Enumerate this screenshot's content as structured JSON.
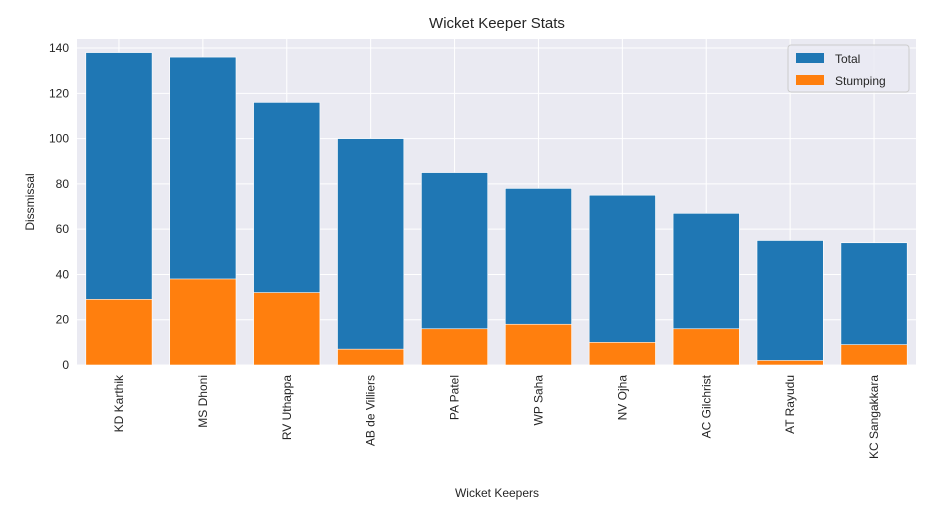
{
  "chart_data": {
    "type": "bar",
    "title": "Wicket Keeper Stats",
    "xlabel": "Wicket Keepers",
    "ylabel": "Dissmissal",
    "categories": [
      "KD Karthik",
      "MS Dhoni",
      "RV Uthappa",
      "AB de Villiers",
      "PA Patel",
      "WP Saha",
      "NV Ojha",
      "AC Gilchrist",
      "AT Rayudu",
      "KC Sangakkara"
    ],
    "series": [
      {
        "name": "Total",
        "color": "#1f77b4",
        "values": [
          138,
          136,
          116,
          100,
          85,
          78,
          75,
          67,
          55,
          54
        ]
      },
      {
        "name": "Stumping",
        "color": "#ff7f0e",
        "values": [
          29,
          38,
          32,
          7,
          16,
          18,
          10,
          16,
          2,
          9
        ]
      }
    ],
    "ylim": [
      0,
      144
    ],
    "yticks": [
      "0",
      "20",
      "40",
      "60",
      "80",
      "100",
      "120",
      "140"
    ],
    "grid": true,
    "legend_position": "top-right",
    "background_color": "#eaeaf2"
  }
}
